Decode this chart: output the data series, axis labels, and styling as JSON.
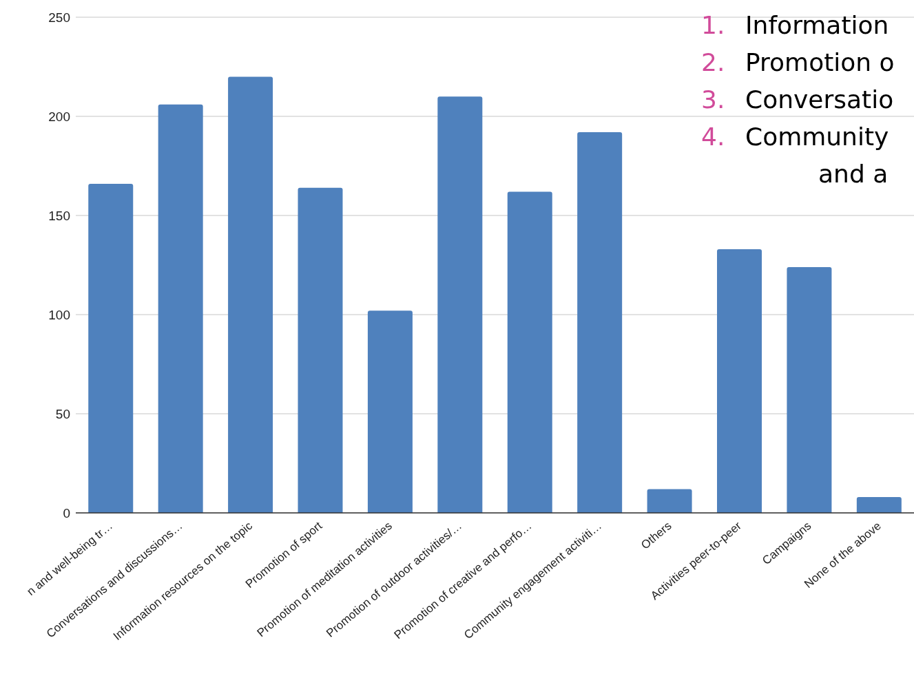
{
  "chart_data": {
    "type": "bar",
    "categories": [
      "n and well-being tr…",
      "Conversations and discussions…",
      "Information resources on the topic",
      "Promotion of sport",
      "Promotion of meditation activities",
      "Promotion of outdoor activities/…",
      "Promotion of creative and perfo…",
      "Community engagement activiti…",
      "Others",
      "Activities peer-to-peer",
      "Campaigns",
      "None of the above"
    ],
    "values": [
      166,
      206,
      220,
      164,
      102,
      210,
      162,
      192,
      12,
      133,
      124,
      8
    ],
    "color": "#4f81bd",
    "ylim": [
      0,
      250
    ],
    "yticks": [
      0,
      50,
      100,
      150,
      200,
      250
    ],
    "grid": "y",
    "legend": false,
    "annotations": [
      "1. Information",
      "2. Promotion o",
      "3. Conversatio",
      "4. Community",
      "and a"
    ]
  }
}
